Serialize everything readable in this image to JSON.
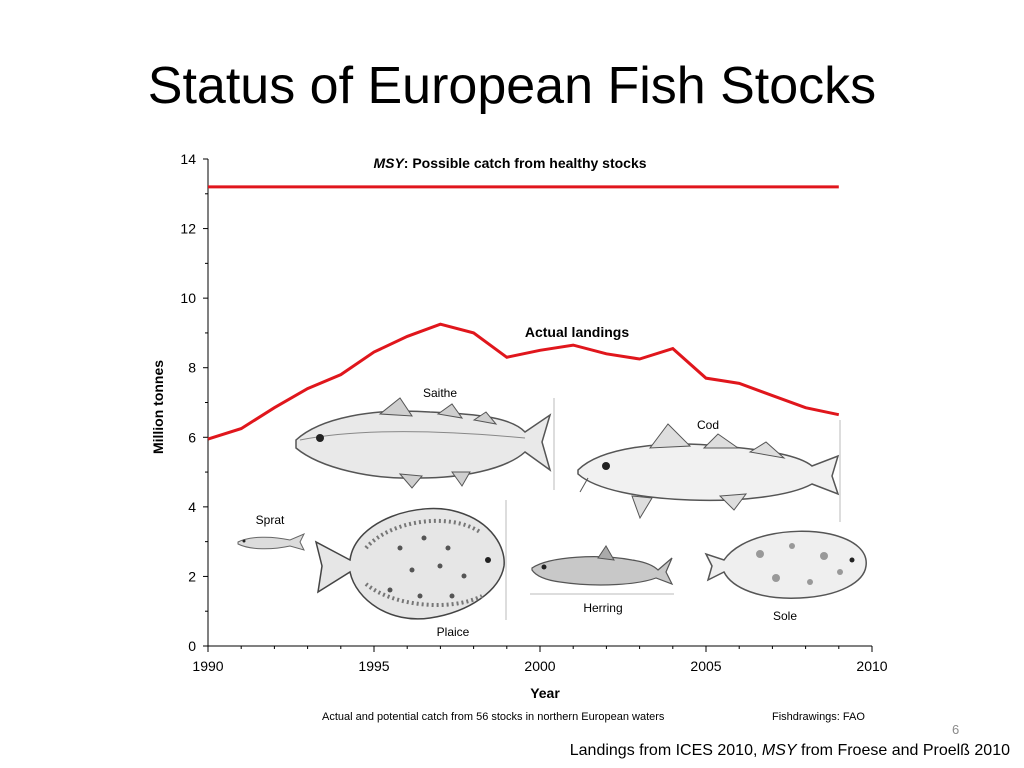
{
  "slide": {
    "title": "Status of European Fish Stocks",
    "number": "6",
    "source": {
      "part1": "Landings from ICES 2010,",
      "msy_word": "MSY",
      "part2": "from Froese and Proelß 2010"
    }
  },
  "chart_data": {
    "type": "line",
    "xlabel": "Year",
    "ylabel": "Million tonnes",
    "xlim": [
      1990,
      2010
    ],
    "ylim": [
      0,
      14
    ],
    "xticks": [
      1990,
      1995,
      2000,
      2005,
      2010
    ],
    "yticks": [
      0,
      2,
      4,
      6,
      8,
      10,
      12,
      14
    ],
    "grid": false,
    "series": [
      {
        "name": "MSY: Possible catch from healthy stocks",
        "label_emphasis": "MSY",
        "label_rest": ": Possible catch from healthy stocks",
        "color": "#e0161c",
        "x": [
          1990,
          2009
        ],
        "y": [
          13.2,
          13.2
        ]
      },
      {
        "name": "Actual landings",
        "color": "#e0161c",
        "x": [
          1990,
          1991,
          1992,
          1993,
          1994,
          1995,
          1996,
          1997,
          1998,
          1999,
          2000,
          2001,
          2002,
          2003,
          2004,
          2005,
          2006,
          2007,
          2008,
          2009
        ],
        "y": [
          5.95,
          6.25,
          6.85,
          7.4,
          7.8,
          8.45,
          8.9,
          9.25,
          9.0,
          8.3,
          8.5,
          8.65,
          8.4,
          8.25,
          8.55,
          7.7,
          7.55,
          7.2,
          6.85,
          6.65
        ]
      }
    ],
    "footnote": "Actual and potential catch from 56 stocks in northern European waters",
    "credit": "Fishdrawings: FAO",
    "fish_labels": {
      "saithe": "Saithe",
      "cod": "Cod",
      "sprat": "Sprat",
      "plaice": "Plaice",
      "herring": "Herring",
      "sole": "Sole"
    }
  }
}
